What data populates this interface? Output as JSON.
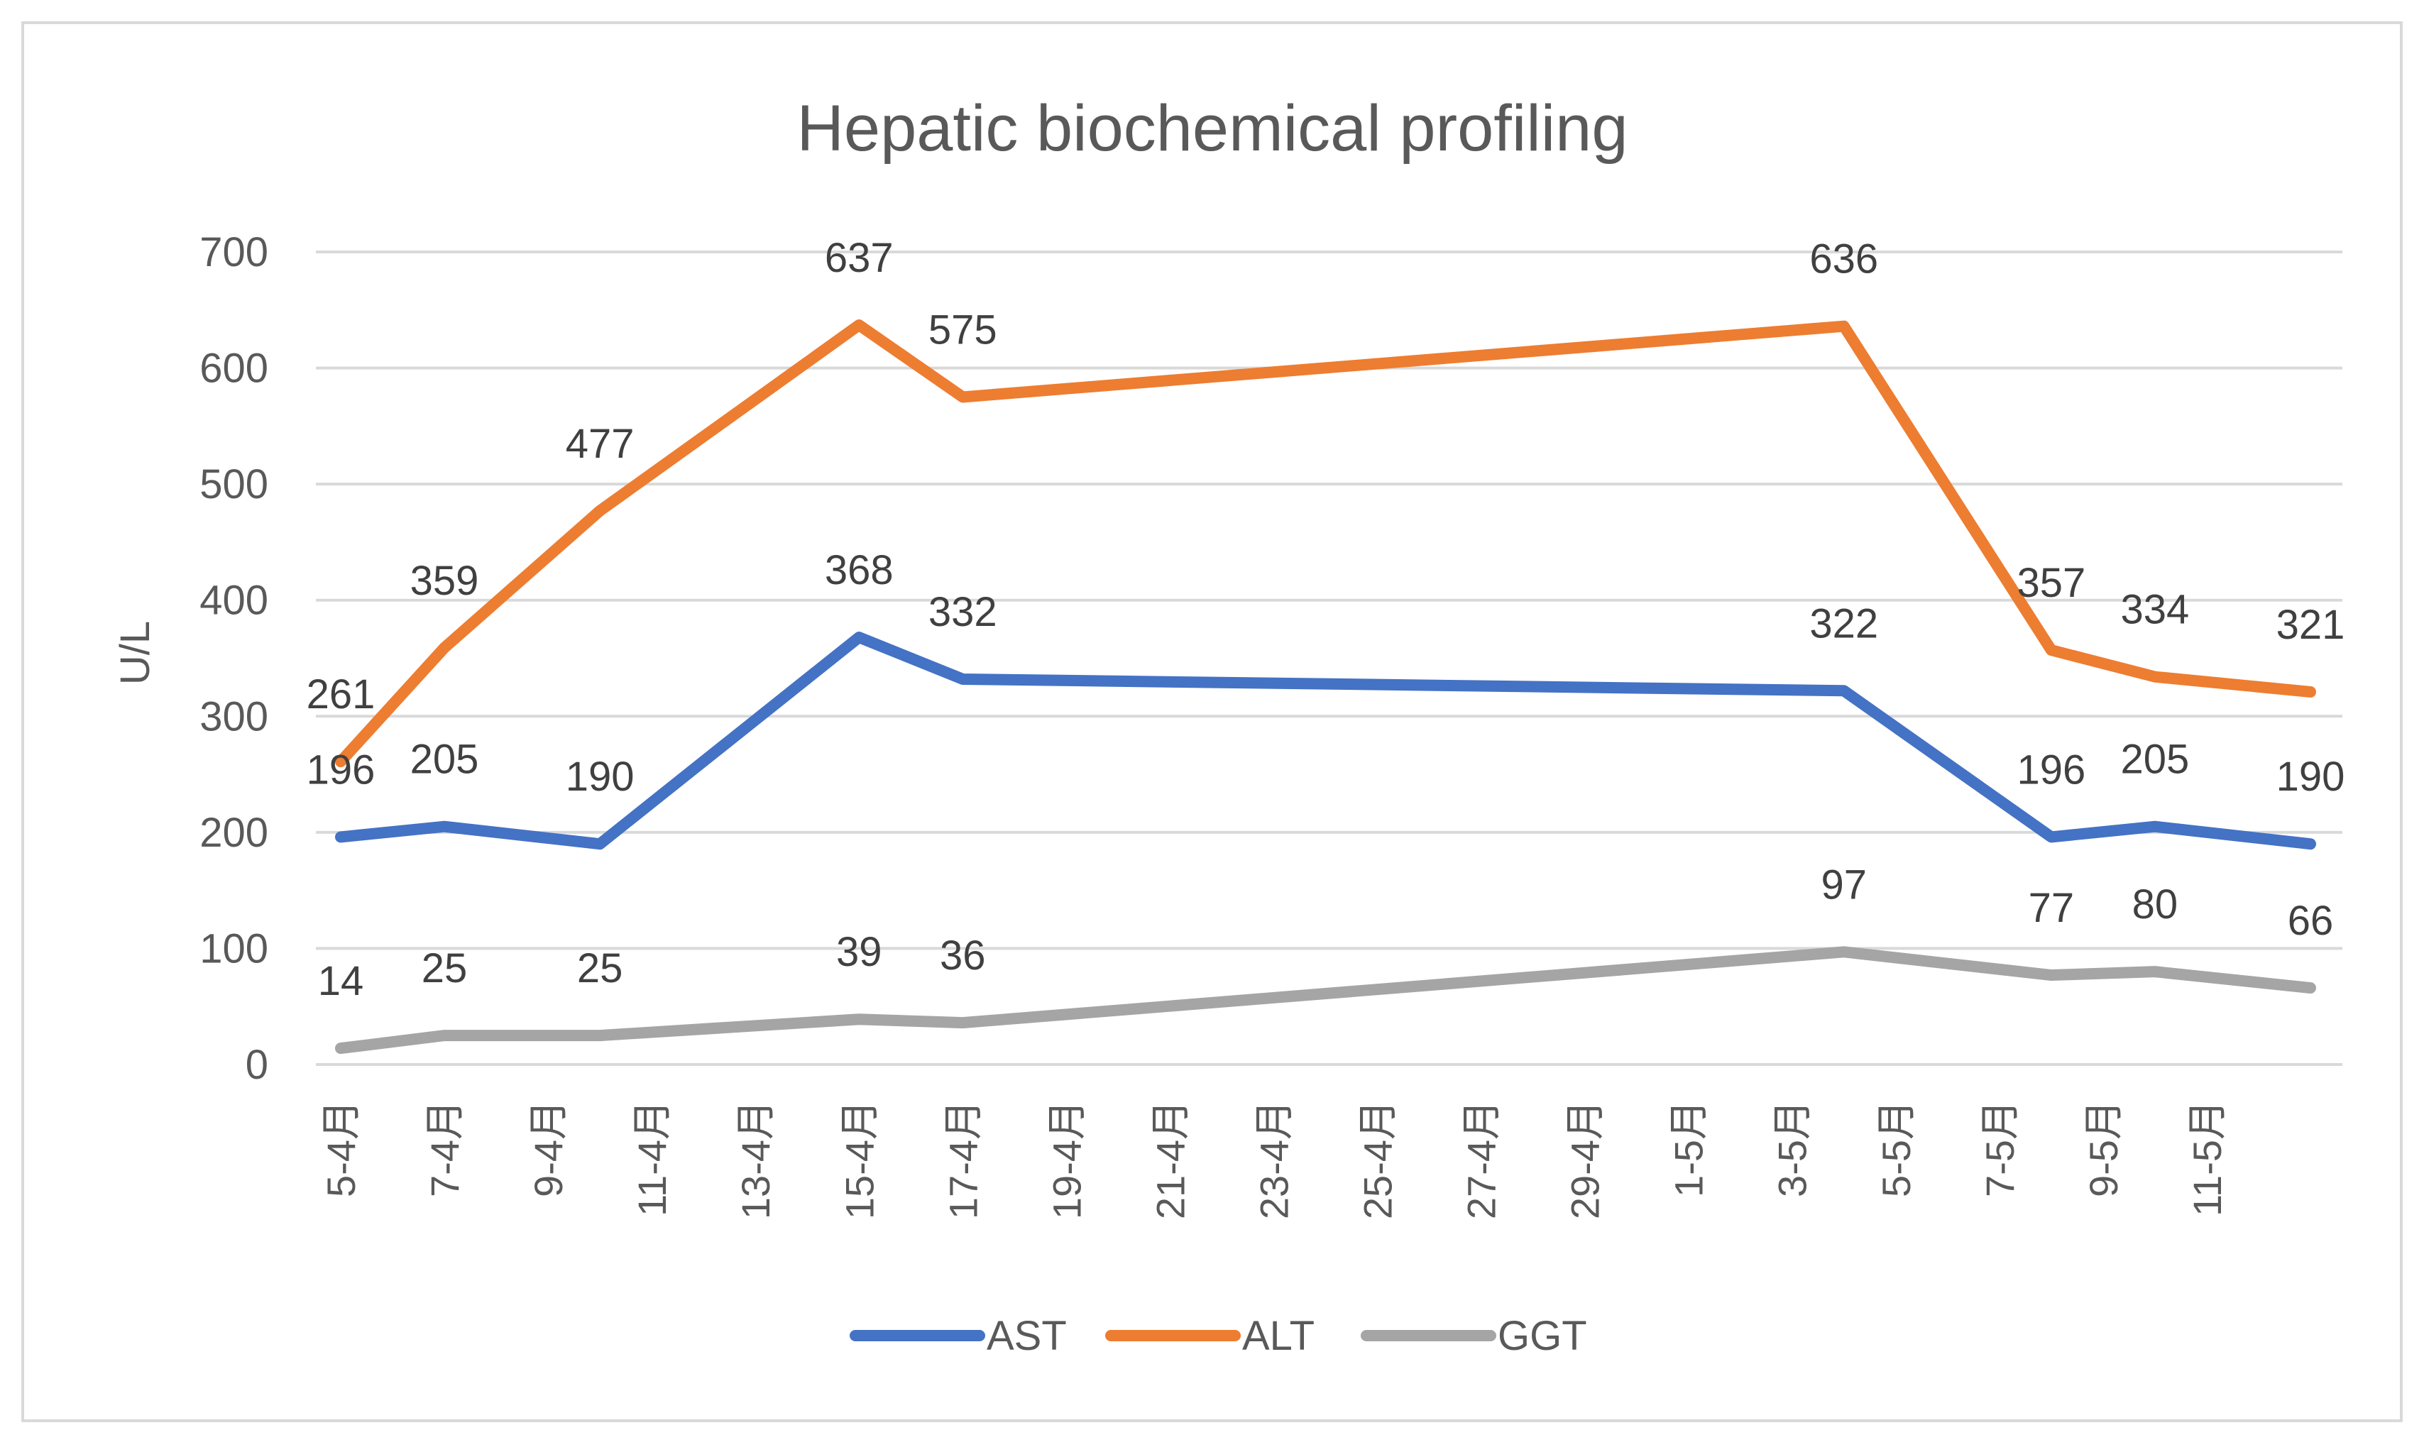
{
  "chart_data": {
    "type": "line",
    "title": "Hepatic biochemical profiling",
    "xlabel": "",
    "ylabel": "U/L",
    "ylim": [
      0,
      700
    ],
    "yticks": [
      0,
      100,
      200,
      300,
      400,
      500,
      600,
      700
    ],
    "grid": true,
    "legend_position": "bottom",
    "x_tick_labels": [
      "5-4月",
      "7-4月",
      "9-4月",
      "11-4月",
      "13-4月",
      "15-4月",
      "17-4月",
      "19-4月",
      "21-4月",
      "23-4月",
      "25-4月",
      "27-4月",
      "29-4月",
      "1-5月",
      "3-5月",
      "5-5月",
      "7-5月",
      "9-5月",
      "11-5月"
    ],
    "x_day_range": [
      0,
      38
    ],
    "series": [
      {
        "name": "AST",
        "color": "#4472C4",
        "x": [
          0,
          2,
          5,
          10,
          12,
          29,
          33,
          35,
          38
        ],
        "values": [
          196,
          205,
          190,
          368,
          332,
          322,
          196,
          205,
          190
        ],
        "labels": [
          "196",
          "205",
          "190",
          "368",
          "332",
          "322",
          "196",
          "205",
          "190"
        ]
      },
      {
        "name": "ALT",
        "color": "#ED7D31",
        "x": [
          0,
          2,
          5,
          10,
          12,
          29,
          33,
          35,
          38
        ],
        "values": [
          261,
          359,
          477,
          637,
          575,
          636,
          357,
          334,
          321
        ],
        "labels": [
          "261",
          "359",
          "477",
          "637",
          "575",
          "636",
          "357",
          "334",
          "321"
        ]
      },
      {
        "name": "GGT",
        "color": "#A5A5A5",
        "x": [
          0,
          2,
          5,
          10,
          12,
          29,
          33,
          35,
          38
        ],
        "values": [
          14,
          25,
          25,
          39,
          36,
          97,
          77,
          80,
          66
        ],
        "labels": [
          "14",
          "25",
          "25",
          "39",
          "36",
          "97",
          "77",
          "80",
          "66"
        ]
      }
    ]
  }
}
